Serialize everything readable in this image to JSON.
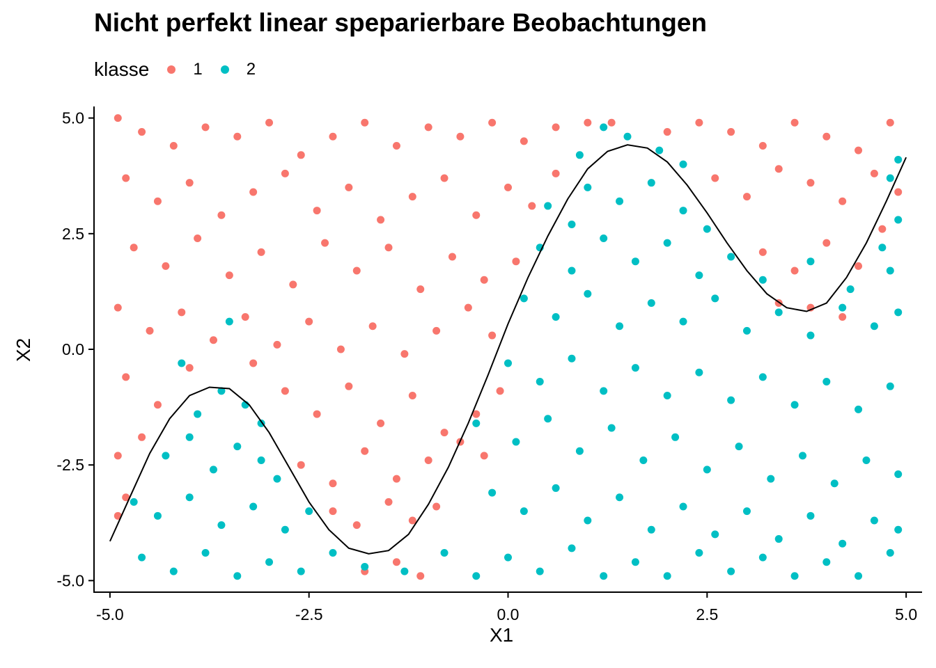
{
  "chart_data": {
    "type": "scatter",
    "title": "Nicht perfekt linear speparierbare Beobachtungen",
    "xlabel": "X1",
    "ylabel": "X2",
    "legend": {
      "title": "klasse",
      "position": "top-left",
      "entries": [
        {
          "label": "1",
          "color": "#F8766D"
        },
        {
          "label": "2",
          "color": "#00BFC4"
        }
      ]
    },
    "xlim": [
      -5.2,
      5.2
    ],
    "ylim": [
      -5.25,
      5.25
    ],
    "x_ticks": [
      -5.0,
      -2.5,
      0.0,
      2.5,
      5.0
    ],
    "x_tick_labels": [
      "-5.0",
      "-2.5",
      "0.0",
      "2.5",
      "5.0"
    ],
    "y_ticks": [
      -5.0,
      -2.5,
      0.0,
      2.5,
      5.0
    ],
    "y_tick_labels": [
      "-5.0",
      "-2.5",
      "0.0",
      "2.5",
      "5.0"
    ],
    "grid": false,
    "series": [
      {
        "name": "1",
        "color": "#F8766D",
        "points": [
          [
            -4.9,
            5.0
          ],
          [
            -4.6,
            4.7
          ],
          [
            -4.2,
            4.4
          ],
          [
            -3.8,
            4.8
          ],
          [
            -3.4,
            4.6
          ],
          [
            -3.0,
            4.9
          ],
          [
            -2.6,
            4.2
          ],
          [
            -2.2,
            4.6
          ],
          [
            -1.8,
            4.9
          ],
          [
            -1.4,
            4.4
          ],
          [
            -1.0,
            4.8
          ],
          [
            -0.6,
            4.6
          ],
          [
            -0.2,
            4.9
          ],
          [
            0.2,
            4.5
          ],
          [
            0.6,
            4.8
          ],
          [
            1.0,
            4.9
          ],
          [
            1.3,
            4.9
          ],
          [
            2.0,
            4.7
          ],
          [
            2.4,
            4.9
          ],
          [
            2.8,
            4.7
          ],
          [
            3.2,
            4.4
          ],
          [
            3.6,
            4.9
          ],
          [
            4.0,
            4.6
          ],
          [
            4.4,
            4.3
          ],
          [
            4.8,
            4.9
          ],
          [
            -4.8,
            3.7
          ],
          [
            -4.4,
            3.2
          ],
          [
            -4.0,
            3.6
          ],
          [
            -3.6,
            2.9
          ],
          [
            -3.2,
            3.4
          ],
          [
            -2.8,
            3.8
          ],
          [
            -2.4,
            3.0
          ],
          [
            -2.0,
            3.5
          ],
          [
            -1.6,
            2.8
          ],
          [
            -1.2,
            3.3
          ],
          [
            -0.8,
            3.7
          ],
          [
            -0.4,
            2.9
          ],
          [
            0.0,
            3.5
          ],
          [
            0.3,
            3.1
          ],
          [
            0.6,
            3.8
          ],
          [
            2.6,
            3.7
          ],
          [
            3.0,
            3.3
          ],
          [
            3.4,
            3.9
          ],
          [
            3.8,
            3.6
          ],
          [
            4.2,
            3.2
          ],
          [
            4.6,
            3.8
          ],
          [
            4.9,
            3.4
          ],
          [
            -4.7,
            2.2
          ],
          [
            -4.3,
            1.8
          ],
          [
            -3.9,
            2.4
          ],
          [
            -3.5,
            1.6
          ],
          [
            -3.1,
            2.1
          ],
          [
            -2.7,
            1.4
          ],
          [
            -2.3,
            2.3
          ],
          [
            -1.9,
            1.7
          ],
          [
            -1.5,
            2.2
          ],
          [
            -1.1,
            1.3
          ],
          [
            -0.7,
            2.0
          ],
          [
            -0.3,
            1.5
          ],
          [
            0.1,
            1.9
          ],
          [
            3.2,
            2.1
          ],
          [
            3.6,
            1.7
          ],
          [
            4.0,
            2.3
          ],
          [
            4.4,
            1.8
          ],
          [
            4.7,
            2.6
          ],
          [
            -4.9,
            0.9
          ],
          [
            -4.5,
            0.4
          ],
          [
            -4.1,
            0.8
          ],
          [
            -3.7,
            0.2
          ],
          [
            -3.3,
            0.7
          ],
          [
            -2.9,
            0.1
          ],
          [
            -2.5,
            0.6
          ],
          [
            -2.1,
            0.0
          ],
          [
            -1.7,
            0.5
          ],
          [
            -1.3,
            -0.1
          ],
          [
            -0.9,
            0.4
          ],
          [
            -0.5,
            0.9
          ],
          [
            -0.2,
            0.3
          ],
          [
            3.4,
            1.0
          ],
          [
            3.8,
            0.9
          ],
          [
            4.2,
            0.7
          ],
          [
            -4.8,
            -0.6
          ],
          [
            -4.4,
            -1.2
          ],
          [
            -4.0,
            -0.4
          ],
          [
            -3.2,
            -0.3
          ],
          [
            -2.8,
            -0.9
          ],
          [
            -2.4,
            -1.4
          ],
          [
            -2.0,
            -0.8
          ],
          [
            -1.6,
            -1.6
          ],
          [
            -1.2,
            -1.0
          ],
          [
            -0.8,
            -1.8
          ],
          [
            -0.4,
            -1.4
          ],
          [
            -0.1,
            -0.9
          ],
          [
            -4.9,
            -2.3
          ],
          [
            -4.6,
            -1.9
          ],
          [
            -2.6,
            -2.5
          ],
          [
            -2.2,
            -2.9
          ],
          [
            -1.8,
            -2.2
          ],
          [
            -1.4,
            -2.8
          ],
          [
            -1.0,
            -2.4
          ],
          [
            -0.6,
            -2.0
          ],
          [
            -0.3,
            -2.3
          ],
          [
            -4.9,
            -3.6
          ],
          [
            -4.8,
            -3.2
          ],
          [
            -2.2,
            -3.5
          ],
          [
            -1.9,
            -3.8
          ],
          [
            -1.5,
            -3.3
          ],
          [
            -1.2,
            -3.7
          ],
          [
            -0.9,
            -3.4
          ],
          [
            -1.8,
            -4.8
          ],
          [
            -1.4,
            -4.6
          ],
          [
            -1.1,
            -4.9
          ]
        ]
      },
      {
        "name": "2",
        "color": "#00BFC4",
        "points": [
          [
            1.2,
            4.8
          ],
          [
            1.5,
            4.6
          ],
          [
            1.9,
            4.3
          ],
          [
            2.2,
            4.0
          ],
          [
            0.9,
            4.2
          ],
          [
            4.9,
            4.1
          ],
          [
            4.8,
            3.7
          ],
          [
            1.0,
            3.5
          ],
          [
            1.4,
            3.2
          ],
          [
            1.8,
            3.6
          ],
          [
            2.2,
            3.0
          ],
          [
            2.5,
            2.6
          ],
          [
            0.5,
            3.1
          ],
          [
            0.8,
            2.7
          ],
          [
            4.9,
            2.8
          ],
          [
            4.7,
            2.2
          ],
          [
            0.4,
            2.2
          ],
          [
            0.8,
            1.7
          ],
          [
            1.2,
            2.4
          ],
          [
            1.6,
            1.9
          ],
          [
            2.0,
            2.3
          ],
          [
            2.4,
            1.6
          ],
          [
            2.8,
            2.0
          ],
          [
            3.2,
            1.5
          ],
          [
            3.8,
            1.9
          ],
          [
            4.3,
            1.3
          ],
          [
            4.8,
            1.7
          ],
          [
            0.2,
            1.1
          ],
          [
            0.6,
            0.7
          ],
          [
            1.0,
            1.2
          ],
          [
            1.4,
            0.5
          ],
          [
            1.8,
            1.0
          ],
          [
            2.2,
            0.6
          ],
          [
            2.6,
            1.1
          ],
          [
            3.0,
            0.4
          ],
          [
            3.4,
            0.8
          ],
          [
            3.8,
            0.3
          ],
          [
            4.2,
            0.9
          ],
          [
            4.6,
            0.5
          ],
          [
            4.9,
            0.8
          ],
          [
            0.0,
            -0.3
          ],
          [
            0.4,
            -0.7
          ],
          [
            0.8,
            -0.2
          ],
          [
            1.2,
            -0.9
          ],
          [
            1.6,
            -0.4
          ],
          [
            2.0,
            -1.0
          ],
          [
            2.4,
            -0.5
          ],
          [
            2.8,
            -1.1
          ],
          [
            3.2,
            -0.6
          ],
          [
            3.6,
            -1.2
          ],
          [
            4.0,
            -0.7
          ],
          [
            4.4,
            -1.3
          ],
          [
            4.8,
            -0.8
          ],
          [
            -0.4,
            -1.6
          ],
          [
            0.1,
            -2.0
          ],
          [
            0.5,
            -1.5
          ],
          [
            0.9,
            -2.2
          ],
          [
            1.3,
            -1.7
          ],
          [
            1.7,
            -2.4
          ],
          [
            2.1,
            -1.9
          ],
          [
            2.5,
            -2.6
          ],
          [
            2.9,
            -2.1
          ],
          [
            3.3,
            -2.8
          ],
          [
            3.7,
            -2.3
          ],
          [
            4.1,
            -2.9
          ],
          [
            4.5,
            -2.4
          ],
          [
            4.9,
            -2.7
          ],
          [
            -0.2,
            -3.1
          ],
          [
            0.2,
            -3.5
          ],
          [
            0.6,
            -3.0
          ],
          [
            1.0,
            -3.7
          ],
          [
            1.4,
            -3.2
          ],
          [
            1.8,
            -3.9
          ],
          [
            2.2,
            -3.4
          ],
          [
            2.6,
            -4.0
          ],
          [
            3.0,
            -3.5
          ],
          [
            3.4,
            -4.1
          ],
          [
            3.8,
            -3.6
          ],
          [
            4.2,
            -4.2
          ],
          [
            4.6,
            -3.7
          ],
          [
            4.9,
            -3.9
          ],
          [
            -0.8,
            -4.4
          ],
          [
            -0.4,
            -4.9
          ],
          [
            0.0,
            -4.5
          ],
          [
            0.4,
            -4.8
          ],
          [
            0.8,
            -4.3
          ],
          [
            1.2,
            -4.9
          ],
          [
            1.6,
            -4.6
          ],
          [
            2.0,
            -4.9
          ],
          [
            2.4,
            -4.4
          ],
          [
            2.8,
            -4.8
          ],
          [
            3.2,
            -4.5
          ],
          [
            3.6,
            -4.9
          ],
          [
            4.0,
            -4.6
          ],
          [
            4.4,
            -4.9
          ],
          [
            4.8,
            -4.4
          ],
          [
            -4.6,
            -4.5
          ],
          [
            -4.2,
            -4.8
          ],
          [
            -3.8,
            -4.4
          ],
          [
            -3.4,
            -4.9
          ],
          [
            -3.0,
            -4.6
          ],
          [
            -2.6,
            -4.8
          ],
          [
            -2.2,
            -4.4
          ],
          [
            -1.8,
            -4.7
          ],
          [
            -1.3,
            -4.8
          ],
          [
            -4.7,
            -3.3
          ],
          [
            -4.4,
            -3.6
          ],
          [
            -4.0,
            -3.2
          ],
          [
            -3.6,
            -3.8
          ],
          [
            -3.2,
            -3.4
          ],
          [
            -2.8,
            -3.9
          ],
          [
            -2.5,
            -3.5
          ],
          [
            -4.3,
            -2.3
          ],
          [
            -4.0,
            -1.9
          ],
          [
            -3.7,
            -2.6
          ],
          [
            -3.4,
            -2.1
          ],
          [
            -3.1,
            -2.4
          ],
          [
            -2.9,
            -2.8
          ],
          [
            -3.9,
            -1.4
          ],
          [
            -3.6,
            -0.9
          ],
          [
            -3.3,
            -1.2
          ],
          [
            -3.1,
            -1.6
          ],
          [
            -3.5,
            0.6
          ],
          [
            -4.1,
            -0.3
          ]
        ]
      }
    ],
    "curve": {
      "name": "decision boundary",
      "color": "#000000",
      "x": [
        -5.0,
        -4.75,
        -4.5,
        -4.25,
        -4.0,
        -3.75,
        -3.5,
        -3.25,
        -3.0,
        -2.75,
        -2.5,
        -2.25,
        -2.0,
        -1.75,
        -1.5,
        -1.25,
        -1.0,
        -0.75,
        -0.5,
        -0.25,
        0.0,
        0.25,
        0.5,
        0.75,
        1.0,
        1.25,
        1.5,
        1.75,
        2.0,
        2.25,
        2.5,
        2.75,
        3.0,
        3.25,
        3.5,
        3.75,
        4.0,
        4.25,
        4.5,
        4.75,
        5.0
      ],
      "y": [
        -4.15,
        -3.2,
        -2.25,
        -1.5,
        -1.0,
        -0.82,
        -0.85,
        -1.2,
        -1.8,
        -2.55,
        -3.3,
        -3.9,
        -4.3,
        -4.42,
        -4.35,
        -4.0,
        -3.35,
        -2.55,
        -1.6,
        -0.55,
        0.55,
        1.55,
        2.45,
        3.25,
        3.9,
        4.28,
        4.42,
        4.35,
        4.05,
        3.55,
        2.95,
        2.3,
        1.7,
        1.2,
        0.9,
        0.82,
        1.0,
        1.55,
        2.3,
        3.2,
        4.15
      ]
    }
  }
}
